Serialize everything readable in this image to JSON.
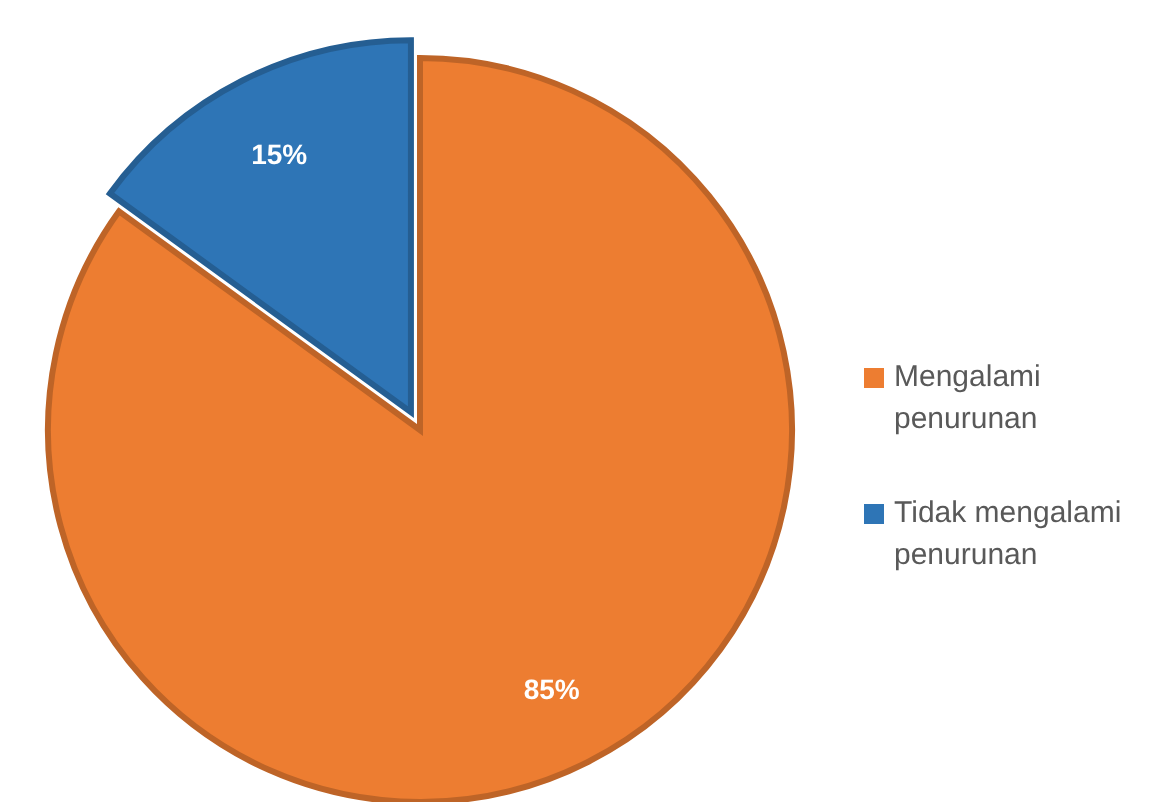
{
  "chart_data": {
    "type": "pie",
    "categories": [
      "Mengalami penurunan",
      "Tidak mengalami penurunan"
    ],
    "values": [
      85,
      15
    ],
    "colors": [
      "#ed7d31",
      "#2e75b6"
    ],
    "value_labels": [
      "85%",
      "15%"
    ],
    "legend": "right"
  }
}
